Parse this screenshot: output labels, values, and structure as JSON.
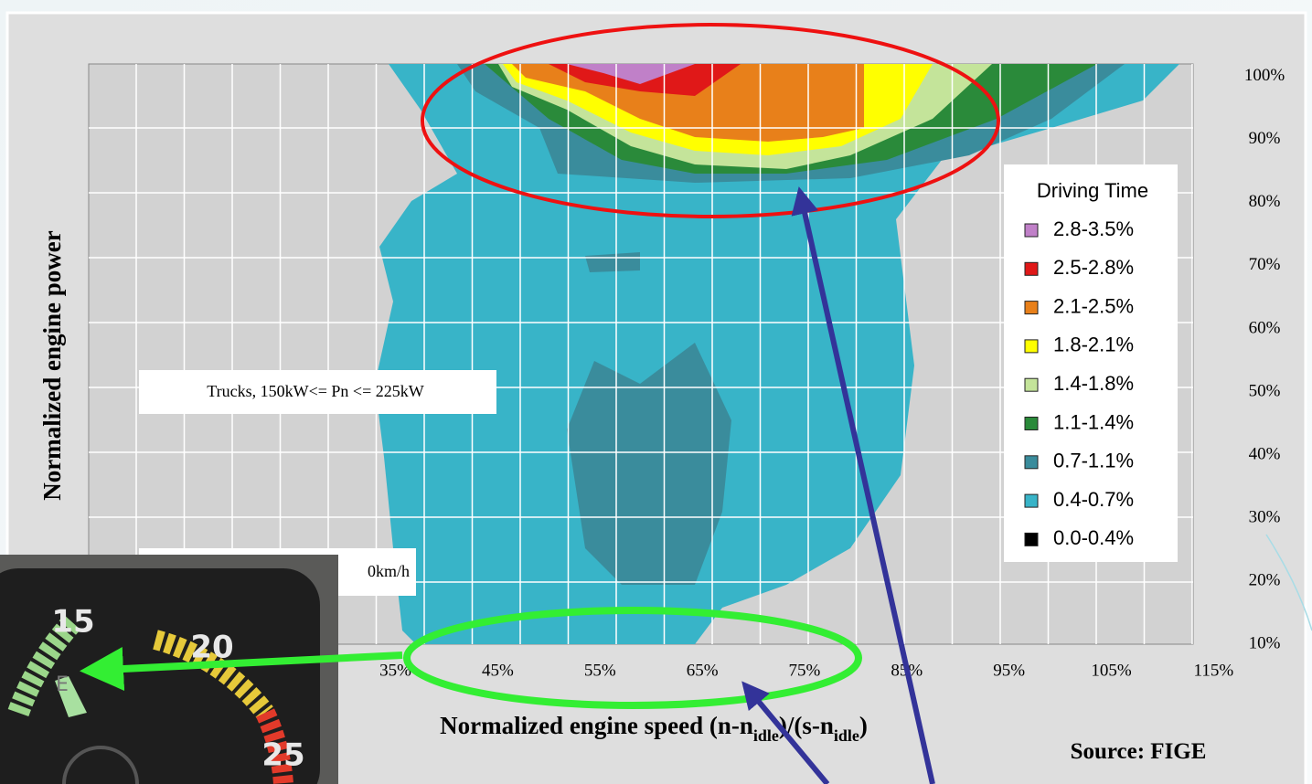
{
  "chart_data": {
    "type": "contour",
    "xlabel_parts": [
      "Normalized engine speed (n-n",
      "idle",
      ")/(s-n",
      "idle",
      ")"
    ],
    "ylabel": "Normalized engine power",
    "xlim": [
      5,
      113
    ],
    "xticks": [
      {
        "value": 35,
        "label": "35%"
      },
      {
        "value": 45,
        "label": "45%"
      },
      {
        "value": 55,
        "label": "55%"
      },
      {
        "value": 65,
        "label": "65%"
      },
      {
        "value": 75,
        "label": "75%"
      },
      {
        "value": 85,
        "label": "85%"
      },
      {
        "value": 95,
        "label": "95%"
      },
      {
        "value": 105,
        "label": "105%"
      },
      {
        "value": 115,
        "label": "115%"
      }
    ],
    "ylim": [
      10,
      102
    ],
    "yticks": [
      {
        "value": 10,
        "label": "10%"
      },
      {
        "value": 20,
        "label": "20%"
      },
      {
        "value": 30,
        "label": "30%"
      },
      {
        "value": 40,
        "label": "40%"
      },
      {
        "value": 50,
        "label": "50%"
      },
      {
        "value": 60,
        "label": "60%"
      },
      {
        "value": 70,
        "label": "70%"
      },
      {
        "value": 80,
        "label": "80%"
      },
      {
        "value": 90,
        "label": "90%"
      },
      {
        "value": 100,
        "label": "100%"
      }
    ],
    "legend": {
      "title": "Driving Time",
      "entries": [
        {
          "label": "2.8-3.5%",
          "color": "#c080c8"
        },
        {
          "label": "2.5-2.8%",
          "color": "#e01818"
        },
        {
          "label": "2.1-2.5%",
          "color": "#e8801a"
        },
        {
          "label": "1.8-2.1%",
          "color": "#ffff00"
        },
        {
          "label": "1.4-1.8%",
          "color": "#c4e49a"
        },
        {
          "label": "1.1-1.4%",
          "color": "#2a8a3a"
        },
        {
          "label": "0.7-1.1%",
          "color": "#3a8c9c"
        },
        {
          "label": "0.4-0.7%",
          "color": "#38b4c8"
        },
        {
          "label": "0.0-0.4%",
          "color": "#000000"
        }
      ]
    },
    "annotations": [
      "Trucks, 150kW<= Pn <= 225kW",
      "0km/h"
    ],
    "source": "Source: FIGE",
    "gauge_labels": [
      "15",
      "20",
      "25",
      "E"
    ]
  }
}
